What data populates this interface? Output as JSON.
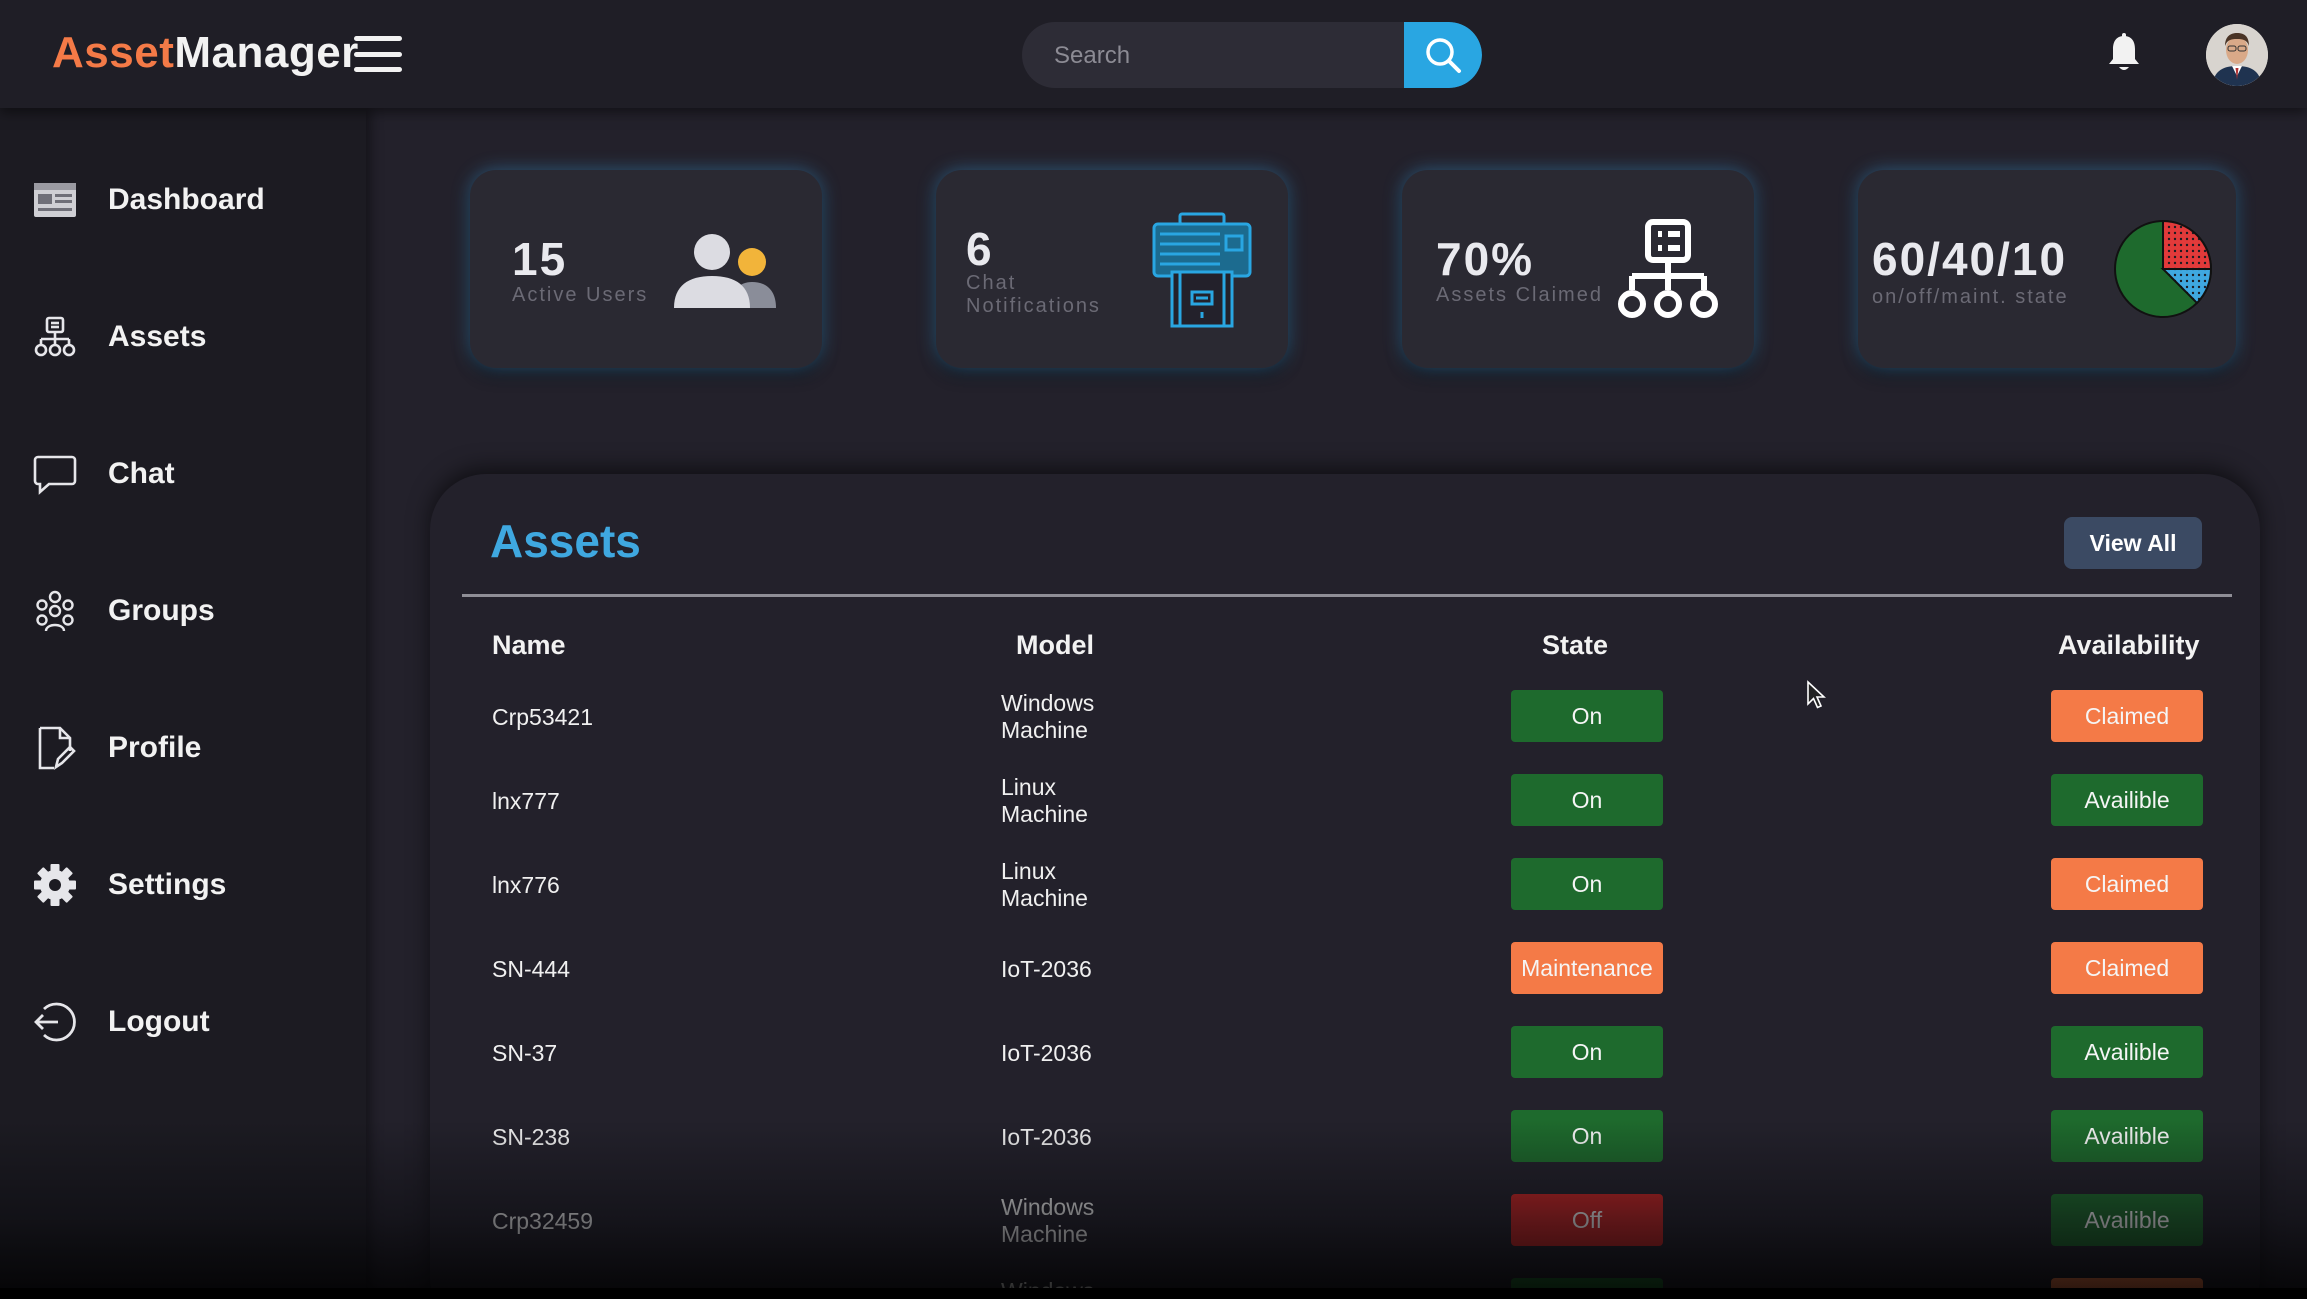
{
  "header": {
    "logo_part1": "Asset",
    "logo_part2": "Manager",
    "search_placeholder": "Search"
  },
  "sidebar": {
    "items": [
      {
        "label": "Dashboard",
        "icon": "dashboard-icon"
      },
      {
        "label": "Assets",
        "icon": "assets-icon"
      },
      {
        "label": "Chat",
        "icon": "chat-icon"
      },
      {
        "label": "Groups",
        "icon": "groups-icon"
      },
      {
        "label": "Profile",
        "icon": "profile-icon"
      },
      {
        "label": "Settings",
        "icon": "gear-icon"
      },
      {
        "label": "Logout",
        "icon": "logout-icon"
      }
    ]
  },
  "stats": [
    {
      "value": "15",
      "label": "Active Users",
      "icon": "users-icon"
    },
    {
      "value": "6",
      "label_line1": "Chat",
      "label_line2": "Notifications",
      "icon": "printer-icon"
    },
    {
      "value": "70%",
      "label": "Assets Claimed",
      "icon": "network-icon"
    },
    {
      "value": "60/40/10",
      "label": "on/off/maint. state",
      "icon": "pie-chart-icon"
    }
  ],
  "assets": {
    "title": "Assets",
    "view_all_label": "View All",
    "columns": [
      "Name",
      "Model",
      "State",
      "Availability"
    ],
    "rows": [
      {
        "name": "Crp53421",
        "model_line1": "Windows",
        "model_line2": "Machine",
        "state": "On",
        "availability": "Claimed"
      },
      {
        "name": "lnx777",
        "model_line1": "Linux",
        "model_line2": "Machine",
        "state": "On",
        "availability": "Availible"
      },
      {
        "name": "lnx776",
        "model_line1": "Linux",
        "model_line2": "Machine",
        "state": "On",
        "availability": "Claimed"
      },
      {
        "name": "SN-444",
        "model_line1": "IoT-2036",
        "model_line2": "",
        "state": "Maintenance",
        "availability": "Claimed"
      },
      {
        "name": "SN-37",
        "model_line1": "IoT-2036",
        "model_line2": "",
        "state": "On",
        "availability": "Availible"
      },
      {
        "name": "SN-238",
        "model_line1": "IoT-2036",
        "model_line2": "",
        "state": "On",
        "availability": "Availible"
      },
      {
        "name": "Crp32459",
        "model_line1": "Windows",
        "model_line2": "Machine",
        "state": "Off",
        "availability": "Availible"
      }
    ],
    "partial_row_model": "Windows"
  },
  "colors": {
    "accent_blue": "#3fa8e0",
    "orange": "#f47a47",
    "green": "#1e6a2d",
    "red": "#c42525",
    "background": "#23212b"
  }
}
